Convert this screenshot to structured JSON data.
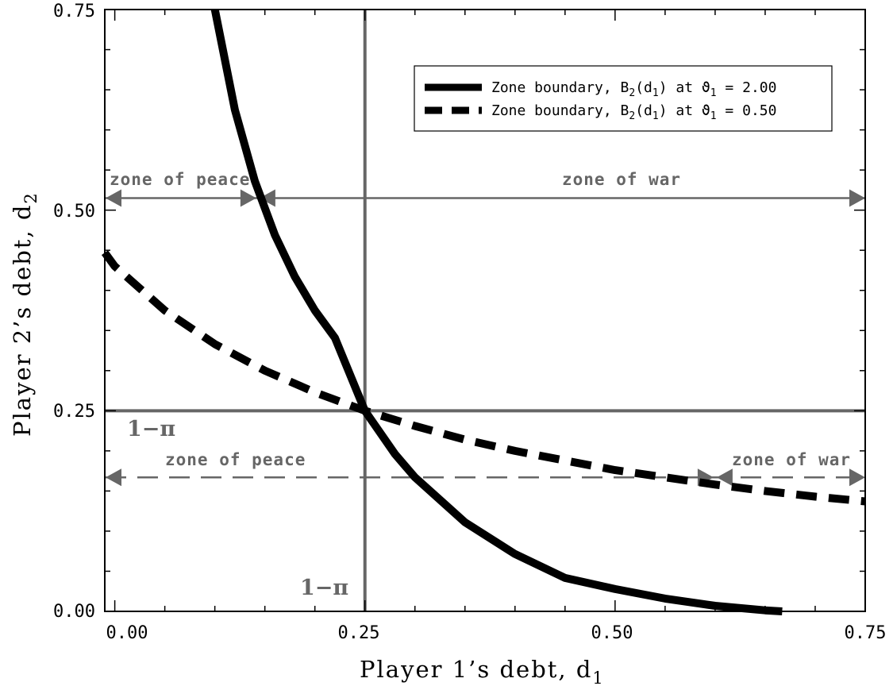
{
  "chart_data": {
    "type": "line",
    "xlabel": "Player 1’s debt, d",
    "xlabel_sub": "1",
    "ylabel": "Player 2’s debt, d",
    "ylabel_sub": "2",
    "xlim": [
      -0.01,
      0.75
    ],
    "ylim": [
      0.0,
      0.75
    ],
    "x_ticks": [
      "0.00",
      "0.25",
      "0.50",
      "0.75"
    ],
    "y_ticks": [
      "0.00",
      "0.25",
      "0.50",
      "0.75"
    ],
    "grid": false,
    "legend_position": "top-right",
    "series": [
      {
        "name_parts": [
          "Zone boundary, B",
          "2",
          "(d",
          "1",
          ") at ϑ",
          "1",
          " = 2.00"
        ],
        "style": "solid",
        "color": "#000000",
        "x": [
          0.1,
          0.12,
          0.14,
          0.16,
          0.18,
          0.2,
          0.22,
          0.25,
          0.28,
          0.3,
          0.35,
          0.4,
          0.45,
          0.5,
          0.55,
          0.6,
          0.65,
          0.667
        ],
        "y": [
          0.75,
          0.625,
          0.536,
          0.469,
          0.417,
          0.375,
          0.341,
          0.25,
          0.196,
          0.167,
          0.111,
          0.0714,
          0.0417,
          0.0278,
          0.0159,
          0.0069,
          0.0013,
          0.0
        ]
      },
      {
        "name_parts": [
          "Zone boundary, B",
          "2",
          "(d",
          "1",
          ") at ϑ",
          "1",
          " = 0.50"
        ],
        "style": "dashed",
        "color": "#000000",
        "x": [
          -0.01,
          0.0,
          0.05,
          0.1,
          0.15,
          0.2,
          0.25,
          0.3,
          0.35,
          0.4,
          0.45,
          0.5,
          0.55,
          0.6,
          0.65,
          0.7,
          0.75
        ],
        "y": [
          0.447,
          0.43,
          0.375,
          0.333,
          0.3,
          0.273,
          0.25,
          0.231,
          0.214,
          0.2,
          0.188,
          0.176,
          0.167,
          0.158,
          0.15,
          0.143,
          0.137
        ]
      }
    ],
    "reference_lines": {
      "vertical_x": 0.25,
      "horizontal_y": 0.25,
      "color": "#666666"
    },
    "zone_arrows": [
      {
        "y": 0.515,
        "x_start": -0.01,
        "x_end": 0.75,
        "split_x": 0.143,
        "style": "solid"
      },
      {
        "y": 0.167,
        "x_start": -0.01,
        "x_end": 0.75,
        "split_x": 0.6,
        "style": "dashed"
      }
    ],
    "annotations": {
      "zone_of_peace_top": "zone of peace",
      "zone_of_war_top": "zone of war",
      "zone_of_peace_bottom": "zone of peace",
      "zone_of_war_bottom": "zone of war",
      "one_minus_pi_h": "1−π",
      "one_minus_pi_v": "1−π"
    }
  }
}
